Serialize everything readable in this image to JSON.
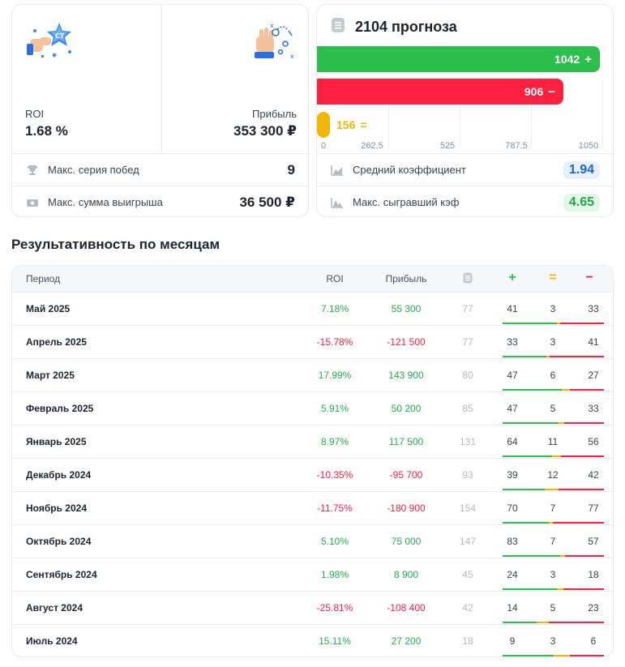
{
  "stats": {
    "roi_label": "ROI",
    "roi_value": "1.68 %",
    "profit_label": "Прибыль",
    "profit_value": "353 300 ₽",
    "streak_label": "Макс. серия побед",
    "streak_value": "9",
    "maxwin_label": "Макс. сумма выигрыша",
    "maxwin_value": "36 500 ₽"
  },
  "forecast": {
    "title": "2104 прогноза",
    "win_count": 1042,
    "win_symbol": "+",
    "lose_count": 906,
    "lose_symbol": "−",
    "draw_count": 156,
    "draw_symbol": "=",
    "axis_max": 1050,
    "axis_ticks": [
      "0",
      "262.5",
      "525",
      "787.5",
      "1050"
    ],
    "avg_coef_label": "Средний коэффициент",
    "avg_coef_value": "1.94",
    "max_coef_label": "Макс. сыгравший кэф",
    "max_coef_value": "4.65"
  },
  "colors": {
    "win": "#2cbf4e",
    "lose": "#ff2040",
    "draw": "#f2b705"
  },
  "section": {
    "title": "Результативность по месяцам"
  },
  "table": {
    "headers": {
      "period": "Период",
      "roi": "ROI",
      "profit": "Прибыль",
      "count_icon": "document-icon",
      "win": "+",
      "draw": "=",
      "lose": "−"
    },
    "rows": [
      {
        "period": "Май 2025",
        "roi": "7.18%",
        "profit": "55 300",
        "count": "77",
        "win": "41",
        "draw": "3",
        "lose": "33",
        "sign": "pos"
      },
      {
        "period": "Апрель 2025",
        "roi": "-15.78%",
        "profit": "-121 500",
        "count": "77",
        "win": "33",
        "draw": "3",
        "lose": "41",
        "sign": "neg"
      },
      {
        "period": "Март 2025",
        "roi": "17.99%",
        "profit": "143 900",
        "count": "80",
        "win": "47",
        "draw": "6",
        "lose": "27",
        "sign": "pos"
      },
      {
        "period": "Февраль 2025",
        "roi": "5.91%",
        "profit": "50 200",
        "count": "85",
        "win": "47",
        "draw": "5",
        "lose": "33",
        "sign": "pos"
      },
      {
        "period": "Январь 2025",
        "roi": "8.97%",
        "profit": "117 500",
        "count": "131",
        "win": "64",
        "draw": "11",
        "lose": "56",
        "sign": "pos"
      },
      {
        "period": "Декабрь 2024",
        "roi": "-10.35%",
        "profit": "-95 700",
        "count": "93",
        "win": "39",
        "draw": "12",
        "lose": "42",
        "sign": "neg"
      },
      {
        "period": "Ноябрь 2024",
        "roi": "-11.75%",
        "profit": "-180 900",
        "count": "154",
        "win": "70",
        "draw": "7",
        "lose": "77",
        "sign": "neg"
      },
      {
        "period": "Октябрь 2024",
        "roi": "5.10%",
        "profit": "75 000",
        "count": "147",
        "win": "83",
        "draw": "7",
        "lose": "57",
        "sign": "pos"
      },
      {
        "period": "Сентябрь 2024",
        "roi": "1.98%",
        "profit": "8 900",
        "count": "45",
        "win": "24",
        "draw": "3",
        "lose": "18",
        "sign": "pos"
      },
      {
        "period": "Август 2024",
        "roi": "-25.81%",
        "profit": "-108 400",
        "count": "42",
        "win": "14",
        "draw": "5",
        "lose": "23",
        "sign": "neg"
      },
      {
        "period": "Июль 2024",
        "roi": "15.11%",
        "profit": "27 200",
        "count": "18",
        "win": "9",
        "draw": "3",
        "lose": "6",
        "sign": "pos"
      }
    ]
  }
}
